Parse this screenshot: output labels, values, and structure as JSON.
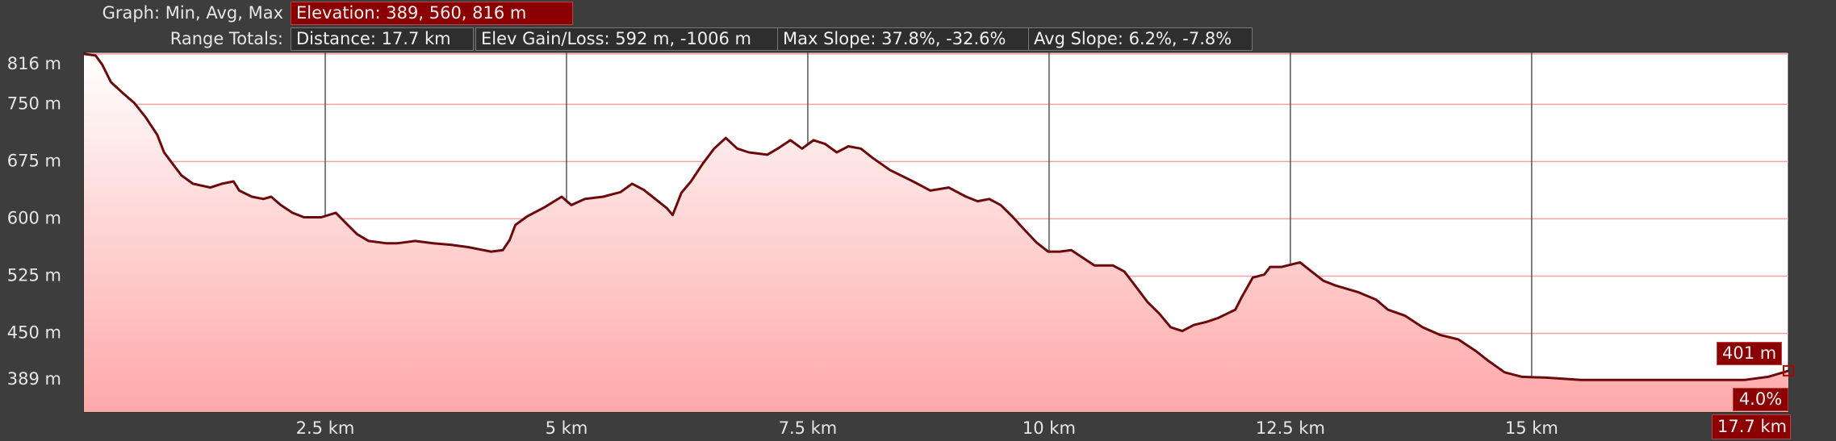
{
  "header": {
    "graph_label": "Graph: Min, Avg, Max",
    "elevation": "Elevation: 389, 560, 816 m",
    "range_label": "Range Totals:",
    "totals": [
      "Distance: 17.7 km",
      "Elev Gain/Loss: 592 m, -1006 m",
      "Max Slope: 37.8%, -32.6%",
      "Avg Slope: 6.2%, -7.8%"
    ]
  },
  "cursor": {
    "elevation_label": "401 m",
    "slope_label": "4.0%",
    "distance_label": "17.7 km"
  },
  "chart_data": {
    "type": "area",
    "color": "#6b0a0a",
    "x": [
      0.0,
      0.12,
      0.19,
      0.28,
      0.41,
      0.52,
      0.64,
      0.76,
      0.83,
      0.92,
      1.01,
      1.13,
      1.31,
      1.43,
      1.55,
      1.61,
      1.74,
      1.86,
      1.94,
      2.04,
      2.16,
      2.28,
      2.46,
      2.61,
      2.71,
      2.83,
      2.95,
      3.13,
      3.25,
      3.43,
      3.62,
      3.8,
      3.98,
      4.1,
      4.22,
      4.34,
      4.41,
      4.47,
      4.59,
      4.77,
      4.95,
      5.05,
      5.19,
      5.38,
      5.56,
      5.68,
      5.8,
      5.92,
      6.04,
      6.1,
      6.19,
      6.29,
      6.41,
      6.53,
      6.65,
      6.77,
      6.89,
      7.08,
      7.2,
      7.32,
      7.44,
      7.56,
      7.68,
      7.8,
      7.92,
      8.05,
      8.17,
      8.35,
      8.59,
      8.77,
      8.96,
      9.14,
      9.26,
      9.38,
      9.5,
      9.62,
      9.75,
      9.87,
      9.99,
      10.11,
      10.23,
      10.35,
      10.47,
      10.66,
      10.78,
      10.9,
      11.02,
      11.14,
      11.26,
      11.38,
      11.5,
      11.63,
      11.75,
      11.93,
      11.99,
      12.11,
      12.23,
      12.29,
      12.41,
      12.6,
      12.72,
      12.84,
      12.96,
      13.2,
      13.39,
      13.51,
      13.69,
      13.87,
      14.05,
      14.24,
      14.42,
      14.54,
      14.72,
      14.9,
      15.15,
      15.51,
      16.12,
      16.72,
      17.21,
      17.45,
      17.66
    ],
    "values": [
      816,
      814,
      802,
      779,
      764,
      752,
      733,
      710,
      687,
      672,
      657,
      646,
      641,
      646,
      649,
      637,
      629,
      626,
      629,
      618,
      608,
      602,
      602,
      608,
      595,
      580,
      571,
      568,
      568,
      571,
      568,
      566,
      563,
      560,
      557,
      559,
      572,
      592,
      603,
      615,
      629,
      618,
      626,
      629,
      635,
      646,
      638,
      626,
      614,
      605,
      634,
      649,
      672,
      692,
      706,
      692,
      687,
      684,
      693,
      703,
      692,
      703,
      698,
      687,
      695,
      692,
      680,
      664,
      649,
      637,
      641,
      629,
      623,
      626,
      618,
      603,
      585,
      569,
      557,
      557,
      559,
      549,
      539,
      539,
      531,
      511,
      491,
      476,
      458,
      453,
      461,
      465,
      470,
      481,
      496,
      523,
      527,
      537,
      537,
      543,
      531,
      519,
      513,
      504,
      494,
      481,
      473,
      458,
      448,
      442,
      427,
      415,
      399,
      393,
      392,
      389,
      389,
      389,
      389,
      393,
      401
    ],
    "xlim": [
      0,
      17.66
    ],
    "ylim": [
      347,
      818
    ],
    "xticks": [
      {
        "value": 2.5,
        "label": "2.5 km"
      },
      {
        "value": 5,
        "label": "5 km"
      },
      {
        "value": 7.5,
        "label": "7.5 km"
      },
      {
        "value": 10,
        "label": "10 km"
      },
      {
        "value": 12.5,
        "label": "12.5 km"
      },
      {
        "value": 15,
        "label": "15 km"
      }
    ],
    "yticks": [
      {
        "value": 389,
        "label": "389 m"
      },
      {
        "value": 450,
        "label": "450 m"
      },
      {
        "value": 525,
        "label": "525 m"
      },
      {
        "value": 600,
        "label": "600 m"
      },
      {
        "value": 675,
        "label": "675 m"
      },
      {
        "value": 750,
        "label": "750 m"
      },
      {
        "value": 816,
        "label": "816 m"
      }
    ],
    "grid": true
  }
}
